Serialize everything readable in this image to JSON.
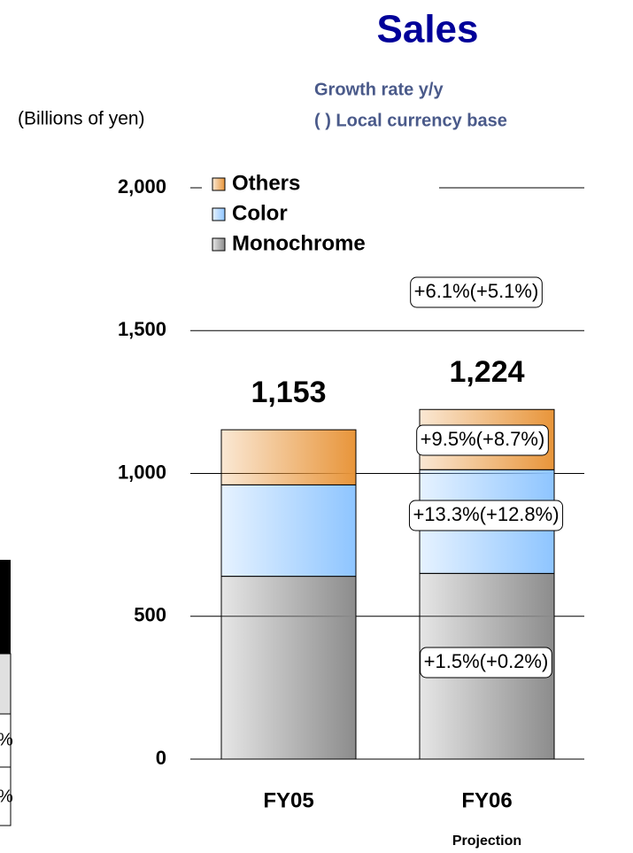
{
  "chart_data": {
    "type": "stacked_bar",
    "title": "Sales",
    "subtitle": [
      "Growth rate y/y",
      "( ) Local currency base"
    ],
    "unit_label": "(Billions of yen)",
    "categories": [
      "FY05",
      "FY06"
    ],
    "category_notes": [
      null,
      "Projection"
    ],
    "series": [
      {
        "name": "Monochrome",
        "color": "#8c8c8c",
        "values": [
          640,
          650
        ]
      },
      {
        "name": "Color",
        "color": "#8ec5ff",
        "values": [
          320,
          363
        ]
      },
      {
        "name": "Others",
        "color": "#e8953a",
        "values": [
          193,
          211
        ]
      }
    ],
    "totals": [
      1153,
      1224
    ],
    "total_labels": [
      "1,153",
      "1,224"
    ],
    "annotations": [
      "+6.1%(+5.1%)",
      "+9.5%(+8.7%)",
      "+13.3%(+12.8%)",
      "+1.5%(+0.2%)"
    ],
    "ylim": [
      0,
      2000
    ],
    "yticks": [
      0,
      500,
      {
        "value": 1000,
        "label": "1,000"
      },
      {
        "value": 1500,
        "label": "1,500"
      },
      {
        "value": 2000,
        "label": "2,000"
      }
    ],
    "grid": true,
    "legend": "top-left"
  },
  "left_fragment": {
    "texts": [
      "%",
      "%"
    ]
  }
}
